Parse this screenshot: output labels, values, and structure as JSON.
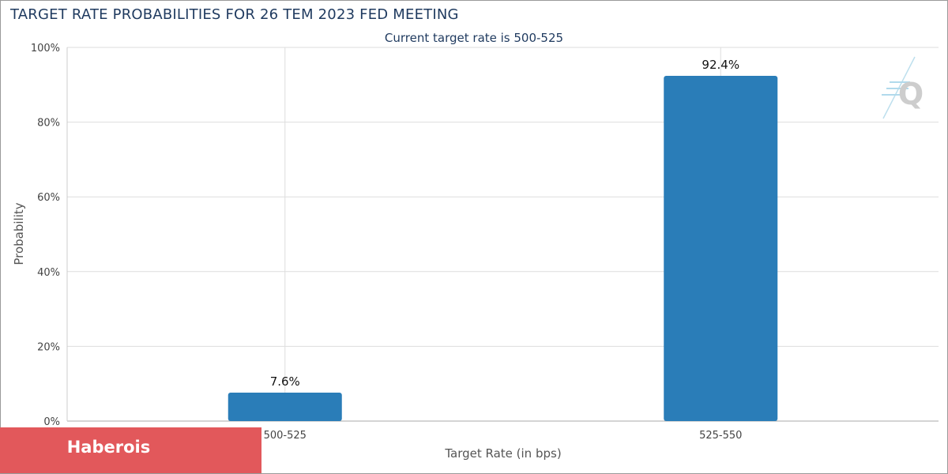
{
  "header": {
    "title": "TARGET RATE PROBABILITIES FOR 26 TEM 2023 FED MEETING",
    "subtitle": "Current target rate is 500-525"
  },
  "badge": {
    "label": "Haberois"
  },
  "colors": {
    "bar": "#2a7db8",
    "grid": "#dddddd",
    "title": "#1f3a5f",
    "badge": "#e2585b",
    "logo": "#7fc3e0"
  },
  "icons": {
    "logo": "q-logo-icon"
  },
  "chart_data": {
    "type": "bar",
    "title": "TARGET RATE PROBABILITIES FOR 26 TEM 2023 FED MEETING",
    "subtitle": "Current target rate is 500-525",
    "categories": [
      "500-525",
      "525-550"
    ],
    "values": [
      7.6,
      92.4
    ],
    "data_labels": [
      "7.6%",
      "92.4%"
    ],
    "xlabel": "Target Rate (in bps)",
    "ylabel": "Probability",
    "ylim": [
      0,
      100
    ],
    "yticks": [
      0,
      20,
      40,
      60,
      80,
      100
    ],
    "ytick_labels": [
      "0%",
      "20%",
      "40%",
      "60%",
      "80%",
      "100%"
    ],
    "grid": true,
    "legend": "none"
  }
}
